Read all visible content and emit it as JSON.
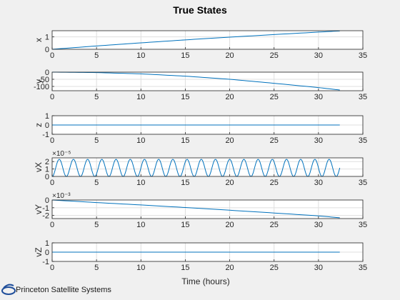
{
  "window": {
    "title": "True States",
    "xlabel": "Time (hours)",
    "footer": "Princeton Satellite Systems"
  },
  "colors": {
    "line": "#0072bd",
    "axis": "#262626",
    "grid": "#dfdfdf",
    "bg": "#f0f0f0",
    "plot": "#ffffff"
  },
  "chart_data": [
    {
      "type": "line",
      "ylabel": "x",
      "xlim": [
        0,
        35
      ],
      "ylim": [
        0,
        1.5
      ],
      "xticks": [
        "0",
        "5",
        "10",
        "15",
        "20",
        "25",
        "30",
        "35"
      ],
      "yticks": [
        "0",
        "1"
      ],
      "x": [
        0,
        5,
        10,
        15,
        20,
        25,
        30,
        32.4
      ],
      "y": [
        0,
        0.27,
        0.52,
        0.76,
        0.98,
        1.19,
        1.39,
        1.48
      ]
    },
    {
      "type": "line",
      "ylabel": "y",
      "xlim": [
        0,
        35
      ],
      "ylim": [
        -130,
        0
      ],
      "xticks": [
        "0",
        "5",
        "10",
        "15",
        "20",
        "25",
        "30",
        "35"
      ],
      "yticks": [
        "0",
        "-50",
        "-100"
      ],
      "x": [
        0,
        5,
        10,
        15,
        20,
        25,
        30,
        32.4
      ],
      "y": [
        0,
        -3,
        -12,
        -28,
        -50,
        -78,
        -108,
        -125
      ]
    },
    {
      "type": "line",
      "ylabel": "z",
      "xlim": [
        0,
        35
      ],
      "ylim": [
        -1,
        1
      ],
      "xticks": [
        "0",
        "5",
        "10",
        "15",
        "20",
        "25",
        "30",
        "35"
      ],
      "yticks": [
        "-1",
        "0",
        "1"
      ],
      "x": [
        0,
        32.4
      ],
      "y": [
        0,
        0
      ]
    },
    {
      "type": "line",
      "ylabel": "vX",
      "xlim": [
        0,
        35
      ],
      "ylim": [
        0,
        2.5
      ],
      "exponent": "×10⁻⁵",
      "xticks": [
        "0",
        "5",
        "10",
        "15",
        "20",
        "25",
        "30",
        "35"
      ],
      "yticks": [
        "0",
        "1",
        "2"
      ],
      "x_end": 32.4,
      "oscillation": {
        "period_hours": 1.6,
        "min": 0,
        "max": 2.3
      }
    },
    {
      "type": "line",
      "ylabel": "vY",
      "xlim": [
        0,
        35
      ],
      "ylim": [
        -2.4,
        0
      ],
      "exponent": "×10⁻³",
      "xticks": [
        "0",
        "5",
        "10",
        "15",
        "20",
        "25",
        "30",
        "35"
      ],
      "yticks": [
        "0",
        "-1",
        "-2"
      ],
      "x": [
        0,
        5,
        10,
        15,
        20,
        25,
        30,
        32.4
      ],
      "y": [
        0,
        -0.33,
        -0.64,
        -0.97,
        -1.32,
        -1.68,
        -2.05,
        -2.3
      ]
    },
    {
      "type": "line",
      "ylabel": "vZ",
      "xlim": [
        0,
        35
      ],
      "ylim": [
        -1,
        1
      ],
      "xticks": [
        "0",
        "5",
        "10",
        "15",
        "20",
        "25",
        "30",
        "35"
      ],
      "yticks": [
        "-1",
        "0",
        "1"
      ],
      "x": [
        0,
        32.4
      ],
      "y": [
        0,
        0
      ]
    }
  ]
}
